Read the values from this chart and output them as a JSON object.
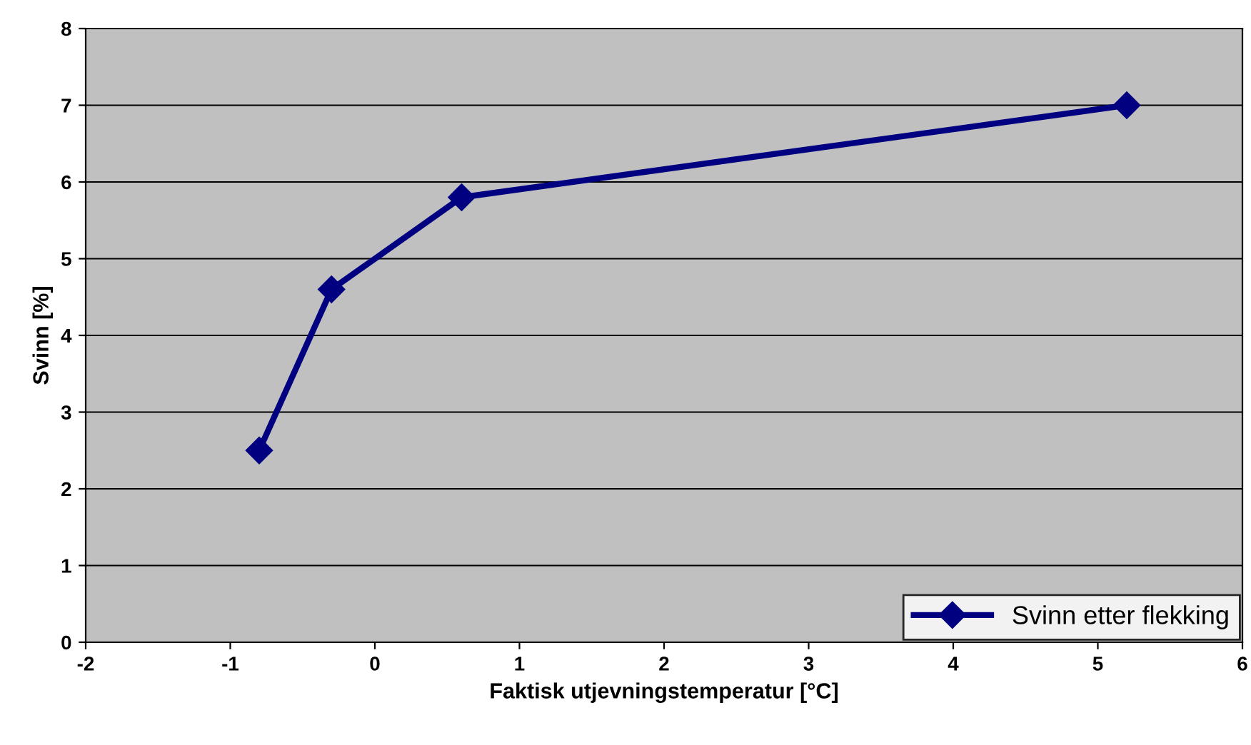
{
  "chart_data": {
    "type": "line",
    "xlabel": "Faktisk utjevningstemperatur [°C]",
    "ylabel": "Svinn [%]",
    "x": [
      -0.8,
      -0.3,
      0.6,
      5.2
    ],
    "series": [
      {
        "name": "Svinn etter flekking",
        "color": "#000080",
        "values": [
          2.5,
          4.6,
          5.8,
          7.0
        ]
      }
    ],
    "xlim": [
      -2,
      6
    ],
    "xticks": [
      -2,
      -1,
      0,
      1,
      2,
      3,
      4,
      5,
      6
    ],
    "ylim": [
      0,
      8
    ],
    "yticks": [
      0,
      1,
      2,
      3,
      4,
      5,
      6,
      7,
      8
    ],
    "grid": "y",
    "legend": "bottom right",
    "marker": "diamond",
    "line_style": "solid"
  }
}
